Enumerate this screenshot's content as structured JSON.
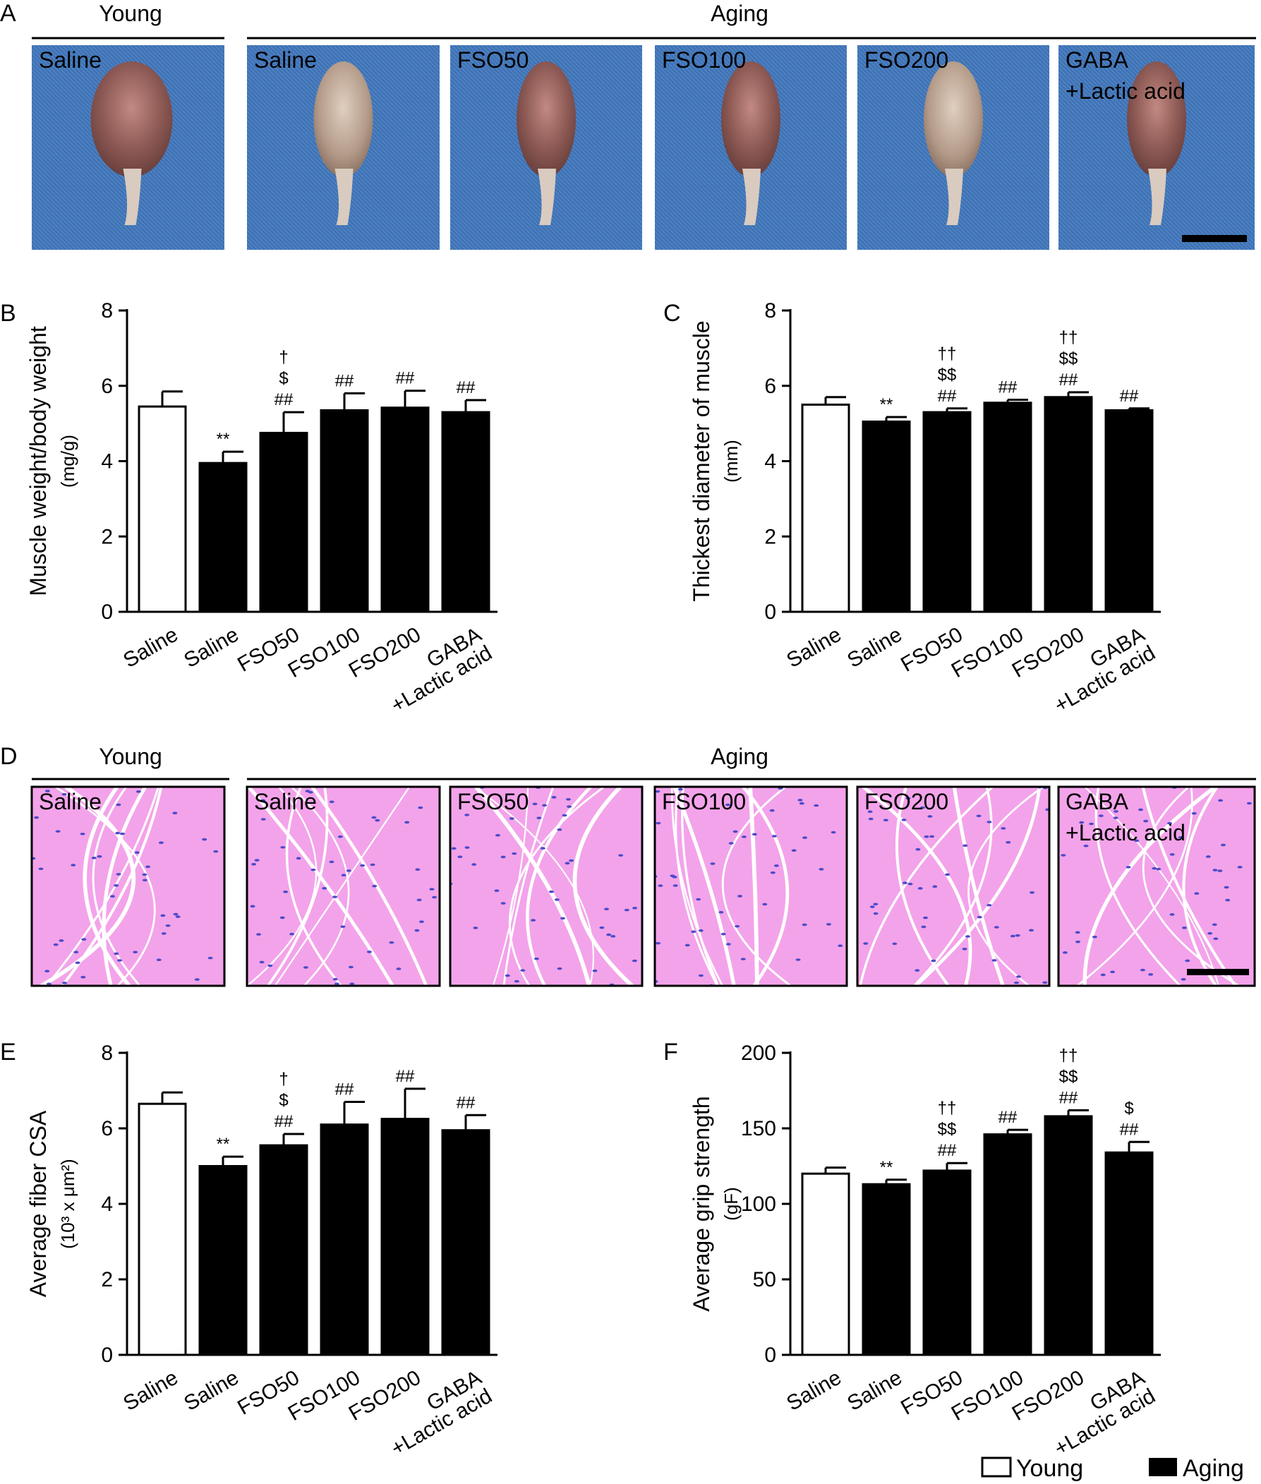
{
  "colors": {
    "young_fill": "#ffffff",
    "aging_fill": "#000000",
    "photo_bg": "#3f73b5",
    "tissue_bg": "#f3a3ea",
    "nuclei": "#4b4bc8"
  },
  "panel_a": {
    "letter": "A",
    "group_young": "Young",
    "group_aging": "Aging",
    "tiles": [
      "Saline",
      "Saline",
      "FSO50",
      "FSO100",
      "FSO200",
      "GABA\n+Lactic acid"
    ]
  },
  "panel_d": {
    "letter": "D",
    "group_young": "Young",
    "group_aging": "Aging",
    "tiles": [
      "Saline",
      "Saline",
      "FSO50",
      "FSO100",
      "FSO200",
      "GABA\n+Lactic acid"
    ]
  },
  "legend": {
    "young": "Young",
    "aging": "Aging"
  },
  "chart_data": [
    {
      "panel": "B",
      "type": "bar",
      "ylabel": "Muscle weight/body weight",
      "ylabel_unit": "(mg/g)",
      "ylim": [
        0,
        8
      ],
      "yticks": [
        0,
        2,
        4,
        6,
        8
      ],
      "categories": [
        "Saline",
        "Saline",
        "FSO50",
        "FSO100",
        "FSO200",
        "GABA\n+Lactic acid"
      ],
      "groups": [
        "Young",
        "Aging",
        "Aging",
        "Aging",
        "Aging",
        "Aging"
      ],
      "values": [
        5.45,
        3.95,
        4.75,
        5.35,
        5.42,
        5.3
      ],
      "errors": [
        0.4,
        0.3,
        0.55,
        0.45,
        0.45,
        0.32
      ],
      "annotations": [
        [],
        [
          "**"
        ],
        [
          "##",
          "$",
          "†"
        ],
        [
          "##"
        ],
        [
          "##"
        ],
        [
          "##"
        ]
      ]
    },
    {
      "panel": "C",
      "type": "bar",
      "ylabel": "Thickest diameter of muscle",
      "ylabel_unit": "(mm)",
      "ylim": [
        0,
        8
      ],
      "yticks": [
        0,
        2,
        4,
        6,
        8
      ],
      "categories": [
        "Saline",
        "Saline",
        "FSO50",
        "FSO100",
        "FSO200",
        "GABA\n+Lactic acid"
      ],
      "groups": [
        "Young",
        "Aging",
        "Aging",
        "Aging",
        "Aging",
        "Aging"
      ],
      "values": [
        5.5,
        5.05,
        5.3,
        5.55,
        5.7,
        5.35
      ],
      "errors": [
        0.2,
        0.12,
        0.1,
        0.08,
        0.13,
        0.05
      ],
      "annotations": [
        [],
        [
          "**"
        ],
        [
          "##",
          "$$",
          "††"
        ],
        [
          "##"
        ],
        [
          "##",
          "$$",
          "††"
        ],
        [
          "##"
        ]
      ]
    },
    {
      "panel": "E",
      "type": "bar",
      "ylabel": "Average fiber CSA",
      "ylabel_unit": "(10³ x μm²)",
      "ylim": [
        0,
        8
      ],
      "yticks": [
        0,
        2,
        4,
        6,
        8
      ],
      "categories": [
        "Saline",
        "Saline",
        "FSO50",
        "FSO100",
        "FSO200",
        "GABA\n+Lactic acid"
      ],
      "groups": [
        "Young",
        "Aging",
        "Aging",
        "Aging",
        "Aging",
        "Aging"
      ],
      "values": [
        6.65,
        5.0,
        5.55,
        6.1,
        6.25,
        5.95
      ],
      "errors": [
        0.3,
        0.25,
        0.3,
        0.6,
        0.8,
        0.4
      ],
      "annotations": [
        [],
        [
          "**"
        ],
        [
          "##",
          "$",
          "†"
        ],
        [
          "##"
        ],
        [
          "##"
        ],
        [
          "##"
        ]
      ]
    },
    {
      "panel": "F",
      "type": "bar",
      "ylabel": "Average grip strength",
      "ylabel_unit": "(gF)",
      "ylim": [
        0,
        200
      ],
      "yticks": [
        0,
        50,
        100,
        150,
        200
      ],
      "categories": [
        "Saline",
        "Saline",
        "FSO50",
        "FSO100",
        "FSO200",
        "GABA\n+Lactic acid"
      ],
      "groups": [
        "Young",
        "Aging",
        "Aging",
        "Aging",
        "Aging",
        "Aging"
      ],
      "values": [
        120,
        113,
        122,
        146,
        158,
        134
      ],
      "errors": [
        4,
        3,
        5,
        3,
        4,
        7
      ],
      "annotations": [
        [],
        [
          "**"
        ],
        [
          "##",
          "$$",
          "††"
        ],
        [
          "##"
        ],
        [
          "##",
          "$$",
          "††"
        ],
        [
          "##",
          "$"
        ]
      ]
    }
  ]
}
